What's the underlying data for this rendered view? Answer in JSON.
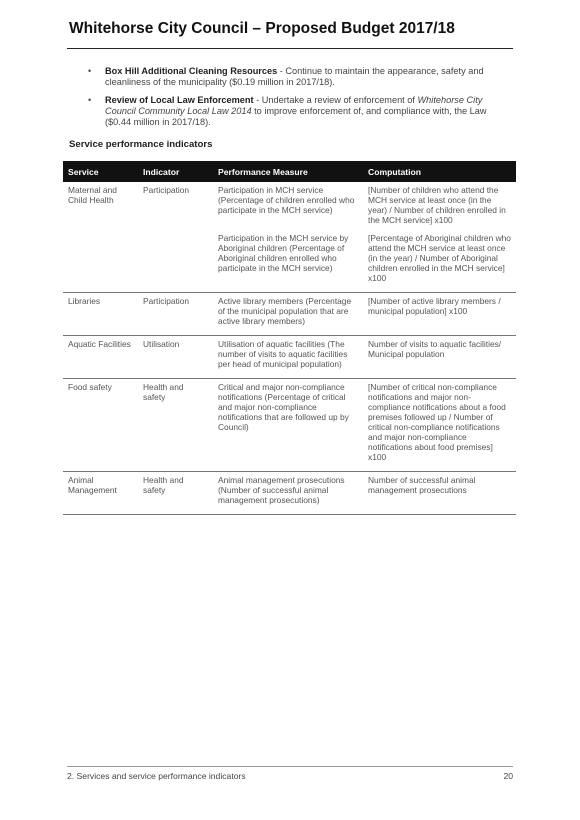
{
  "header": {
    "title": "Whitehorse City Council – Proposed Budget 2017/18"
  },
  "bullets": [
    {
      "bullet": "•",
      "bold": "Box Hill Additional Cleaning Resources",
      "text": " - Continue to maintain the appearance, safety and cleanliness of the municipality ($0.19 million in 2017/18)."
    },
    {
      "bullet": "•",
      "bold": "Review of Local Law Enforcement",
      "text_before": " - Undertake a review of enforcement of ",
      "italic": "Whitehorse City Council Community Local Law 2014",
      "text_after": " to improve enforcement of, and compliance with, the Law ($0.44 million in 2017/18)."
    }
  ],
  "section": {
    "heading": "Service performance indicators"
  },
  "table": {
    "headers": [
      "Service",
      "Indicator",
      "Performance Measure",
      "Computation"
    ],
    "rows": [
      {
        "service": "Maternal and Child Health",
        "indicator": "Participation",
        "measure": "Participation in MCH service (Percentage of children enrolled who participate in the MCH service)",
        "computation": "[Number of children who attend the MCH service at least once (in the year) / Number of children enrolled in the MCH service] x100"
      },
      {
        "service": "",
        "indicator": "",
        "measure": "Participation in the MCH service by Aboriginal children (Percentage of Aboriginal children enrolled who participate in the MCH service)",
        "computation": "[Percentage of Aboriginal children who attend the MCH service at least once (in the year) / Number of Aboriginal children enrolled in the MCH service] x100"
      },
      {
        "service": "Libraries",
        "indicator": "Participation",
        "measure": "Active library members (Percentage of the municipal population that are active library members)",
        "computation": "[Number of active library members / municipal population] x100"
      },
      {
        "service": "Aquatic Facilities",
        "indicator": "Utilisation",
        "measure": "Utilisation of aquatic facilities (The number of visits to aquatic facilities per head of municipal population)",
        "computation": "Number of visits to aquatic facilities/ Municipal population"
      },
      {
        "service": "Food safety",
        "indicator": "Health and safety",
        "measure": "Critical and major non-compliance notifications (Percentage of critical and major non-compliance notifications that are followed up by Council)",
        "computation": "[Number of critical non-compliance notifications and major non-compliance notifications about a food premises followed up / Number of critical non-compliance notifications and major non-compliance notifications about food premises] x100"
      },
      {
        "service": "Animal Management",
        "indicator": "Health and safety",
        "measure": "Animal management prosecutions (Number of successful animal management prosecutions)",
        "computation": "Number of successful animal management prosecutions"
      }
    ]
  },
  "footer": {
    "section_label": "2. Services and service performance indicators",
    "page_number": "20"
  }
}
